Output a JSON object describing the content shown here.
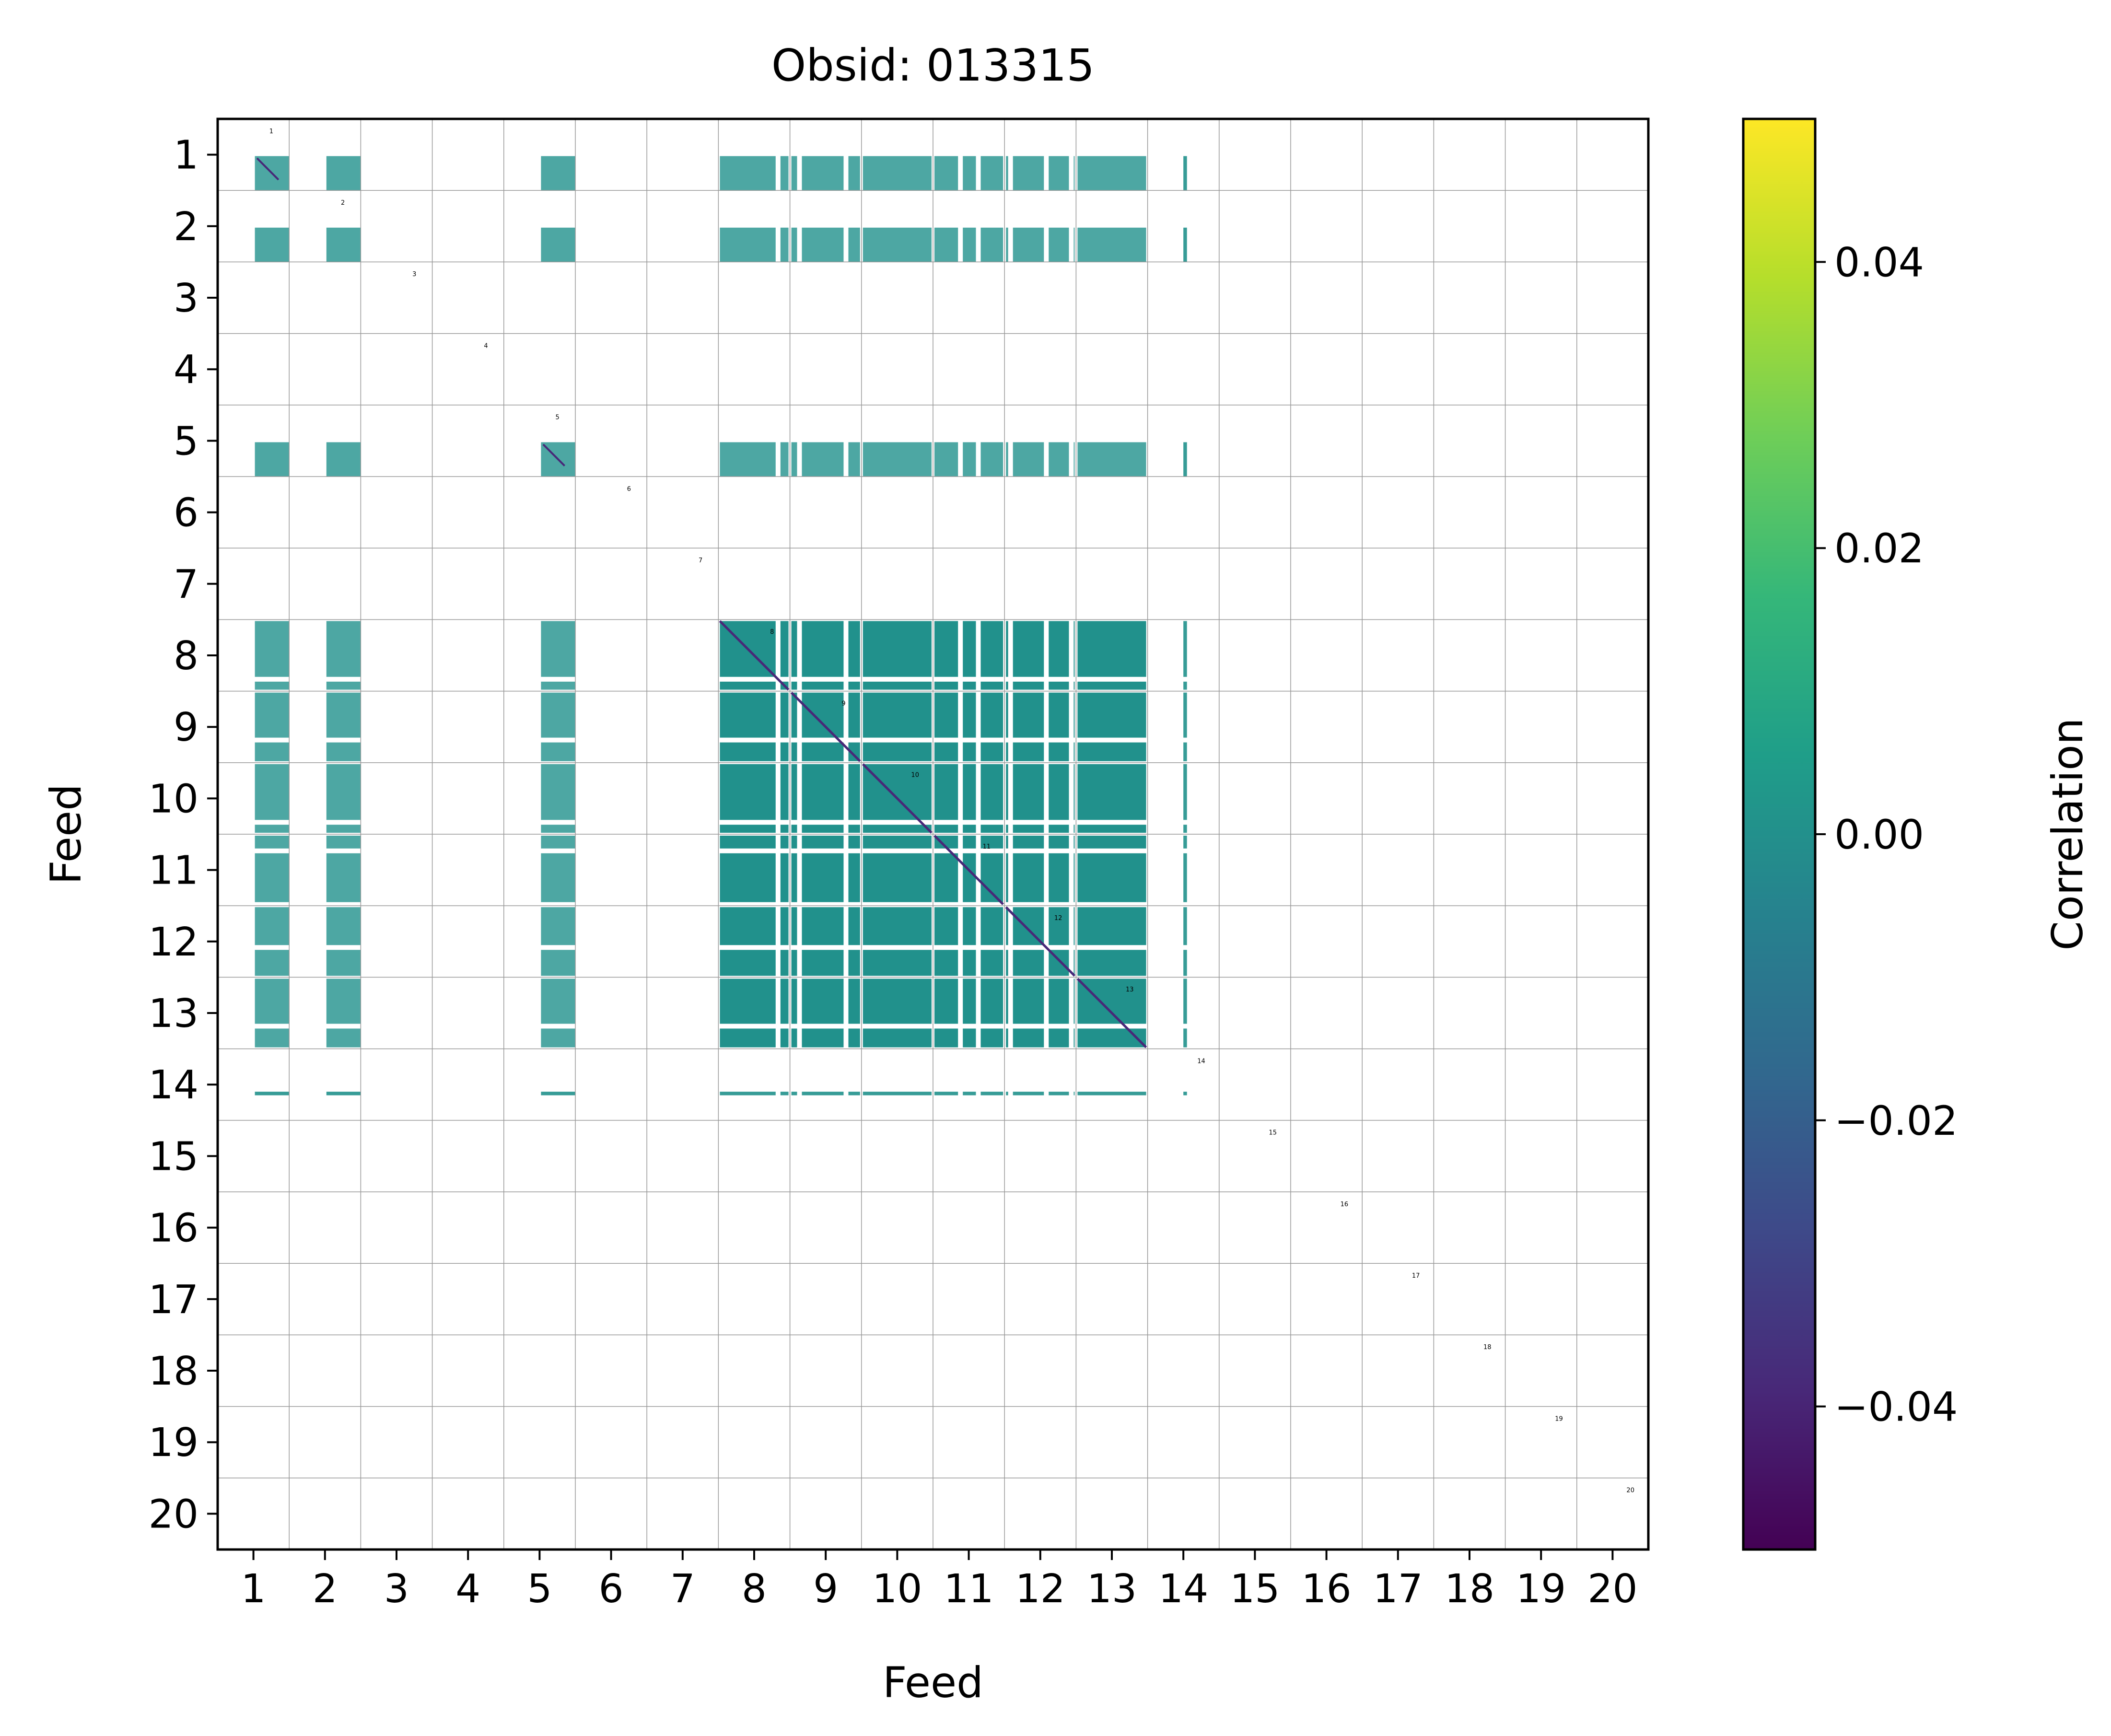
{
  "chart_data": {
    "type": "heatmap",
    "title": "Obsid: 013315",
    "xlabel": "Feed",
    "ylabel": "Feed",
    "x_ticks": [
      "1",
      "2",
      "3",
      "4",
      "5",
      "6",
      "7",
      "8",
      "9",
      "10",
      "11",
      "12",
      "13",
      "14",
      "15",
      "16",
      "17",
      "18",
      "19",
      "20"
    ],
    "y_ticks": [
      "1",
      "2",
      "3",
      "4",
      "5",
      "6",
      "7",
      "8",
      "9",
      "10",
      "11",
      "12",
      "13",
      "14",
      "15",
      "16",
      "17",
      "18",
      "19",
      "20"
    ],
    "block_labels": [
      "1",
      "2",
      "3",
      "4",
      "5",
      "6",
      "7",
      "8",
      "9",
      "10",
      "11",
      "12",
      "13",
      "14",
      "15",
      "16",
      "17",
      "18",
      "19",
      "20"
    ],
    "grid": true,
    "n_feeds": 20,
    "fill_value": 0.0,
    "fill_color": "#21918c",
    "active_feeds": [
      1,
      2,
      5,
      8,
      9,
      10,
      11,
      12,
      13,
      14
    ],
    "core_feeds": [
      8,
      9,
      10,
      11,
      12,
      13
    ],
    "strong_diagonal_feeds": [
      8,
      9,
      10,
      11,
      12,
      13
    ],
    "colorbar": {
      "label": "Correlation",
      "min": -0.05,
      "max": 0.05,
      "ticks": [
        -0.04,
        -0.02,
        0.0,
        0.02,
        0.04
      ],
      "tick_labels": [
        "−0.04",
        "−0.02",
        "0.00",
        "0.02",
        "0.04"
      ],
      "colormap": "viridis",
      "colors": [
        "#440154",
        "#482878",
        "#3e4989",
        "#31688e",
        "#26828e",
        "#1f9e89",
        "#35b779",
        "#6ece58",
        "#b5de2b",
        "#fde725"
      ]
    }
  }
}
